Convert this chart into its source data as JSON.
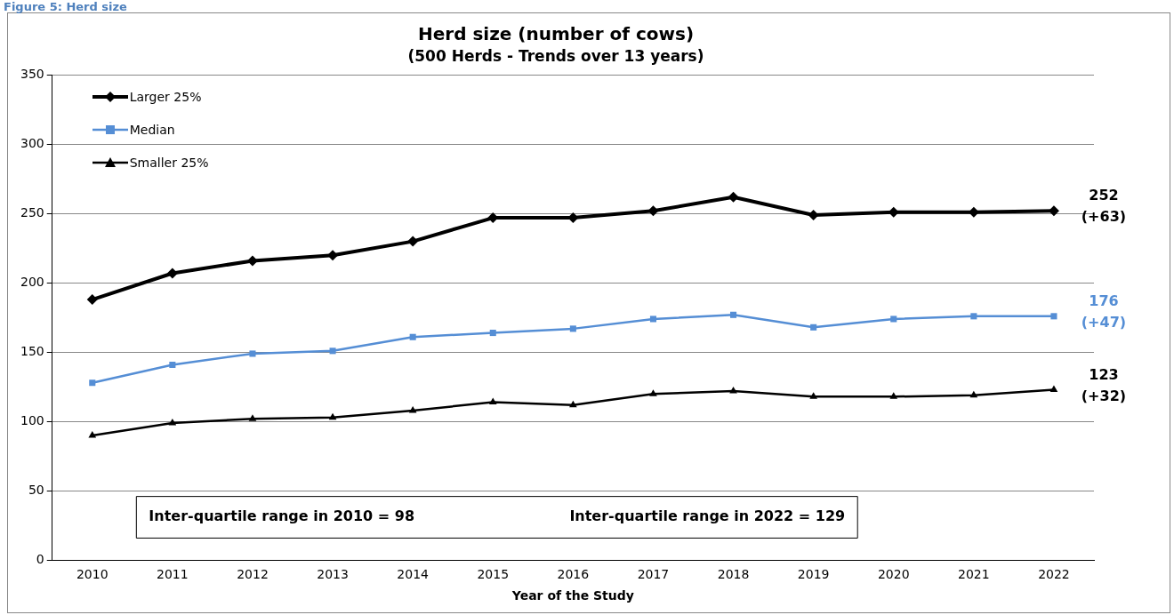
{
  "chart_data": {
    "type": "line",
    "title": "Herd size (number of cows)",
    "subtitle": "(500 Herds - Trends over 13 years)",
    "xlabel": "Year of the Study",
    "categories": [
      "2010",
      "2011",
      "2012",
      "2013",
      "2014",
      "2015",
      "2016",
      "2017",
      "2018",
      "2019",
      "2020",
      "2021",
      "2022"
    ],
    "series": [
      {
        "name": "Larger 25%",
        "color": "#000000",
        "marker": "diamond",
        "values": [
          188,
          207,
          216,
          220,
          230,
          247,
          247,
          252,
          262,
          249,
          251,
          251,
          252
        ]
      },
      {
        "name": "Median",
        "color": "#558ed5",
        "marker": "square",
        "values": [
          128,
          141,
          149,
          151,
          161,
          164,
          167,
          174,
          177,
          168,
          174,
          176,
          176
        ]
      },
      {
        "name": "Smaller 25%",
        "color": "#000000",
        "marker": "triangle",
        "values": [
          90,
          99,
          102,
          103,
          108,
          114,
          112,
          120,
          122,
          118,
          118,
          119,
          123
        ]
      }
    ],
    "ylim": [
      0,
      350
    ],
    "yticks": [
      0,
      50,
      100,
      150,
      200,
      250,
      300,
      350
    ],
    "grid": "y",
    "legend": "top left",
    "line_style": "solid",
    "annotations": [
      "Figure 5: Herd size",
      "Inter-quartile range in 2010 = 98",
      "Inter-quartile range in 2022 = 129",
      {
        "text": "252\n(+63)",
        "x": "2022",
        "y": 252
      },
      {
        "text": "176\n(+47)",
        "x": "2022",
        "y": 176
      },
      {
        "text": "123\n(+32)",
        "x": "2022",
        "y": 123
      }
    ]
  }
}
